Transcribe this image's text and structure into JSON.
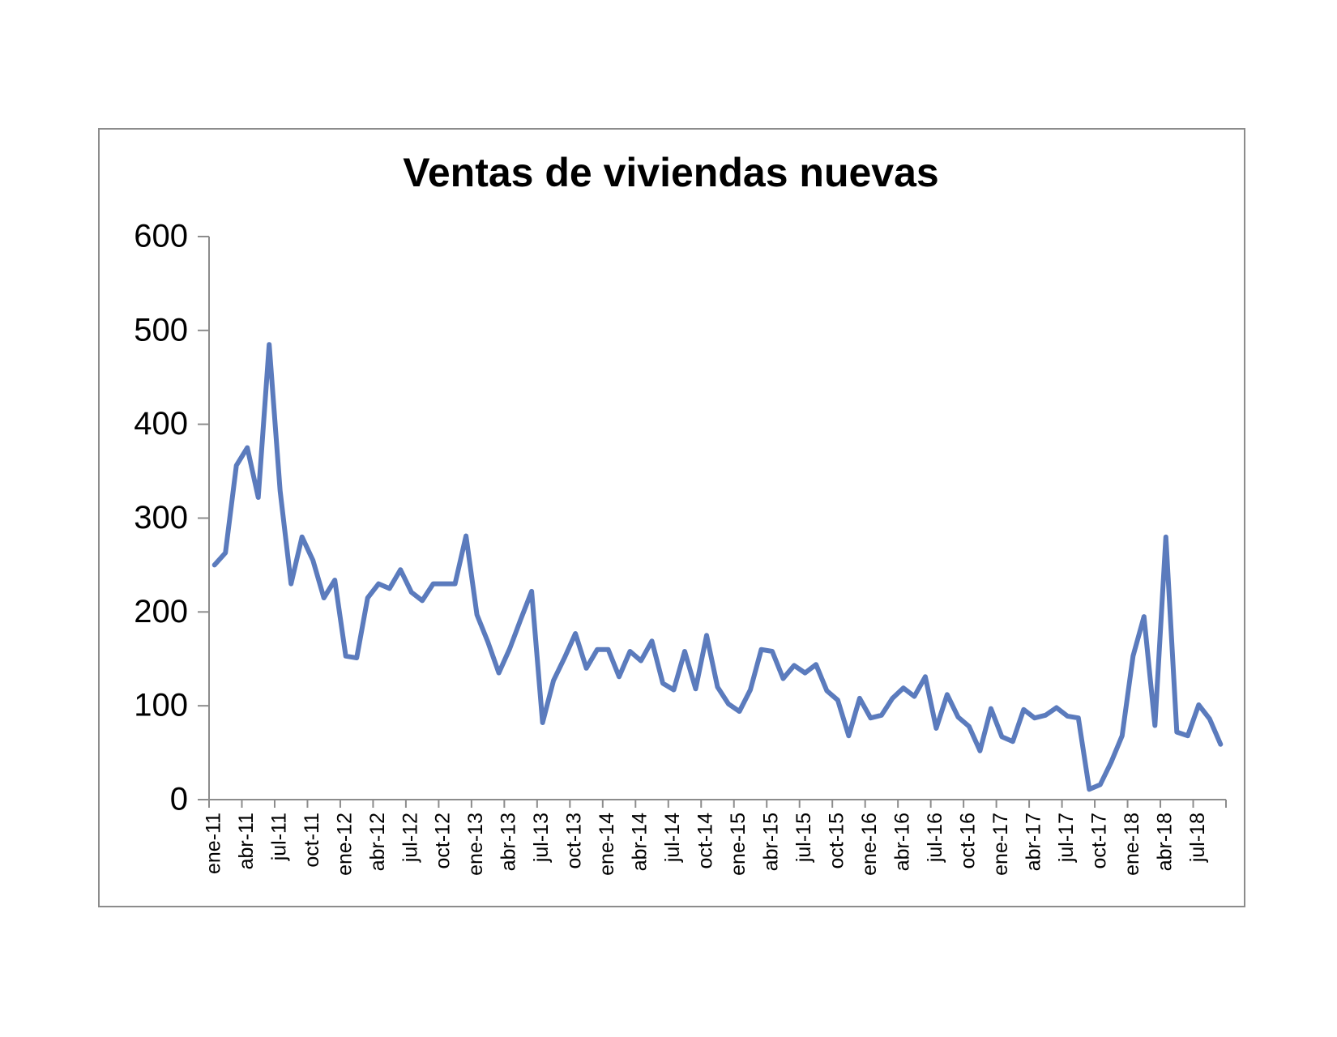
{
  "chart_data": {
    "type": "line",
    "title": "Ventas de viviendas nuevas",
    "categories": [
      "ene-11",
      null,
      null,
      "abr-11",
      null,
      null,
      "jul-11",
      null,
      null,
      "oct-11",
      null,
      null,
      "ene-12",
      null,
      null,
      "abr-12",
      null,
      null,
      "jul-12",
      null,
      null,
      "oct-12",
      null,
      null,
      "ene-13",
      null,
      null,
      "abr-13",
      null,
      null,
      "jul-13",
      null,
      null,
      "oct-13",
      null,
      null,
      "ene-14",
      null,
      null,
      "abr-14",
      null,
      null,
      "jul-14",
      null,
      null,
      "oct-14",
      null,
      null,
      "ene-15",
      null,
      null,
      "abr-15",
      null,
      null,
      "jul-15",
      null,
      null,
      "oct-15",
      null,
      null,
      "ene-16",
      null,
      null,
      "abr-16",
      null,
      null,
      "jul-16",
      null,
      null,
      "oct-16",
      null,
      null,
      "ene-17",
      null,
      null,
      "abr-17",
      null,
      null,
      "jul-17",
      null,
      null,
      "oct-17",
      null,
      null,
      "ene-18",
      null,
      null,
      "abr-18",
      null,
      null,
      "jul-18",
      null,
      null
    ],
    "series": [
      {
        "color": "#5b7bbd",
        "values": [
          250,
          263,
          356,
          375,
          322,
          485,
          329,
          230,
          280,
          255,
          215,
          234,
          153,
          151,
          215,
          230,
          225,
          245,
          221,
          212,
          230,
          230,
          230,
          281,
          197,
          168,
          135,
          161,
          192,
          222,
          82,
          127,
          151,
          177,
          140,
          160,
          160,
          131,
          158,
          148,
          169,
          124,
          117,
          158,
          118,
          175,
          120,
          102,
          94,
          117,
          160,
          158,
          129,
          143,
          135,
          144,
          116,
          106,
          68,
          108,
          87,
          90,
          108,
          119,
          110,
          131,
          76,
          112,
          88,
          78,
          52,
          97,
          67,
          62,
          96,
          87,
          90,
          98,
          89,
          87,
          11,
          16,
          40,
          68,
          153,
          195,
          79,
          280,
          72,
          68,
          101,
          86,
          59
        ]
      }
    ],
    "ylim": [
      0,
      600
    ],
    "yticks": [
      0,
      100,
      200,
      300,
      400,
      500,
      600
    ]
  }
}
